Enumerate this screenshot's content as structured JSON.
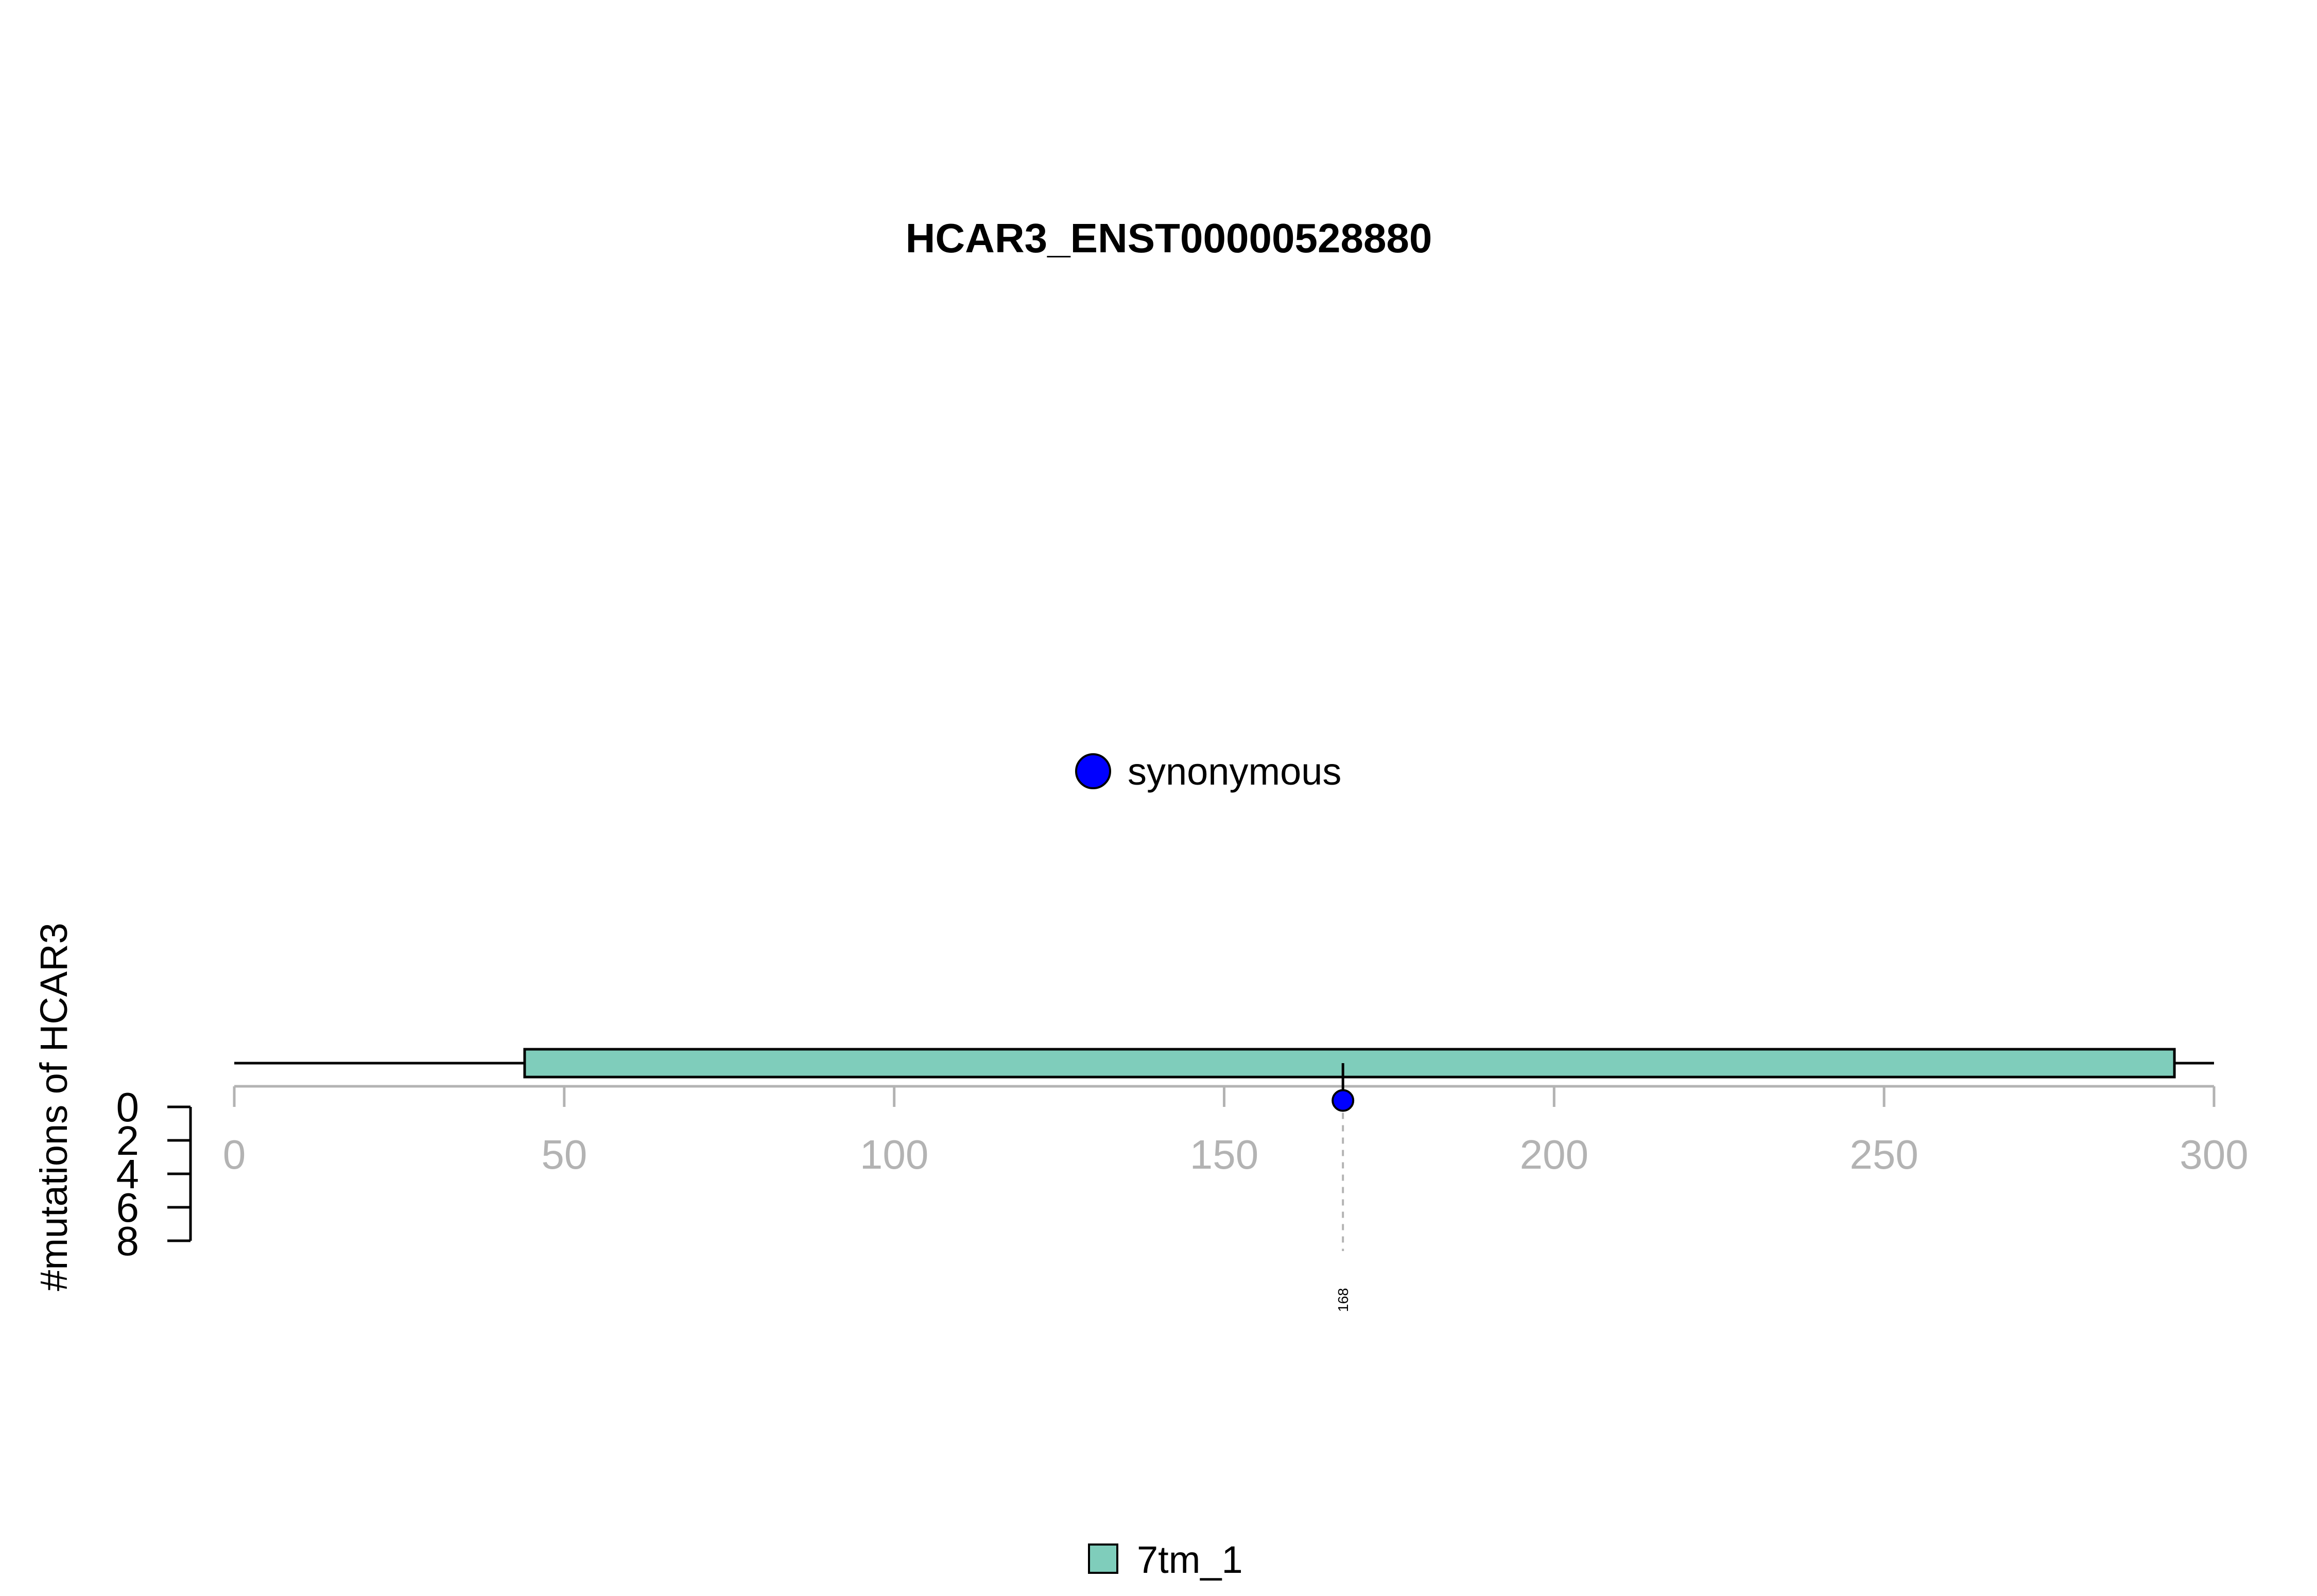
{
  "chart_data": {
    "type": "lollipop",
    "title": "HCAR3_ENST00000528880",
    "ylabel": "#mutations of HCAR3",
    "xlim": [
      0,
      300
    ],
    "x_ticks": [
      "0",
      "50",
      "100",
      "150",
      "200",
      "250",
      "300"
    ],
    "y_ticks": [
      "0",
      "2",
      "4",
      "6",
      "8"
    ],
    "ylim": [
      0,
      8
    ],
    "protein_length": 300,
    "domains": [
      {
        "name": "7tm_1",
        "start": 44,
        "end": 294,
        "color": "#7fcdbb"
      }
    ],
    "mutations": [
      {
        "position": 168,
        "count": 1,
        "type": "synonymous",
        "label": "168",
        "color": "#0000ff"
      }
    ],
    "mutation_legend": [
      {
        "label": "synonymous",
        "color": "#0000ff"
      }
    ],
    "domain_legend": [
      {
        "label": "7tm_1",
        "color": "#7fcdbb"
      }
    ],
    "colors": {
      "axis": "#b3b3b3",
      "line": "#000000"
    }
  }
}
